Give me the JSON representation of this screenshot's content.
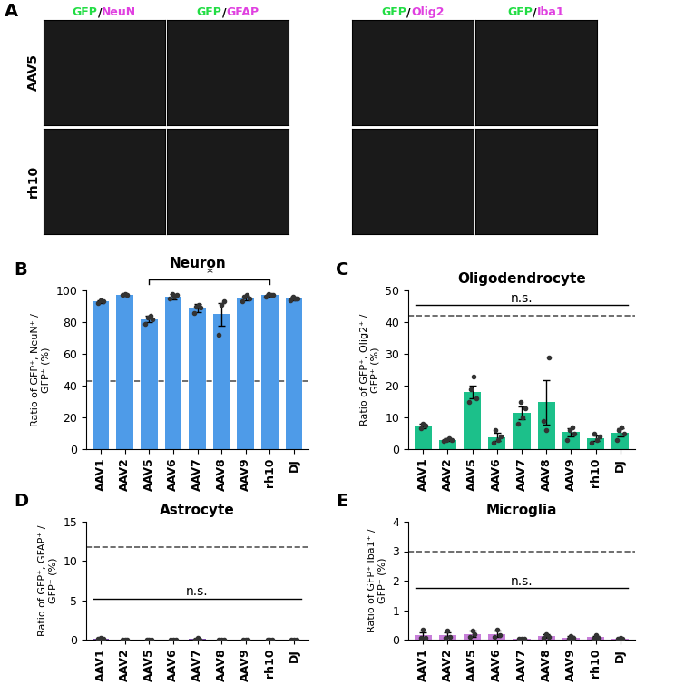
{
  "image_panel": {
    "panel": "A",
    "separator": "/",
    "reporter": "GFP",
    "reporter_color": "#22dd44",
    "stain_color": "#e040e0",
    "stains": [
      "NeuN",
      "GFAP",
      "Olig2",
      "Iba1"
    ],
    "rows": [
      "AAV5",
      "rh10"
    ]
  },
  "chart_data": [
    {
      "type": "bar",
      "panel": "B",
      "title": "Neuron",
      "y_label": "Ratio of GFP⁺, NeuN⁺ /\nGFP⁺ (%)",
      "categories": [
        "AAV1",
        "AAV2",
        "AAV5",
        "AAV6",
        "AAV7",
        "AAV8",
        "AAV9",
        "rh10",
        "DJ"
      ],
      "values": [
        93,
        97,
        82,
        96,
        89,
        85,
        95,
        97,
        95
      ],
      "errors": [
        1,
        0.5,
        2,
        1.5,
        2.5,
        7,
        1.5,
        0.8,
        1
      ],
      "points": [
        [
          92,
          94,
          93
        ],
        [
          97,
          98,
          97
        ],
        [
          79,
          83,
          84,
          82
        ],
        [
          95,
          98,
          96,
          97
        ],
        [
          86,
          90,
          91,
          89
        ],
        [
          72,
          91,
          93
        ],
        [
          93,
          96,
          97,
          95
        ],
        [
          96,
          98,
          97,
          97
        ],
        [
          94,
          96,
          95,
          95
        ]
      ],
      "color": "#4e9be8",
      "ylim": [
        0,
        100
      ],
      "yticks": [
        0,
        20,
        40,
        60,
        80,
        100
      ],
      "reference_line": 43,
      "annotations": [
        {
          "text": "*",
          "from": "AAV5",
          "to": "rh10"
        }
      ]
    },
    {
      "type": "bar",
      "panel": "C",
      "title": "Oligodendrocyte",
      "y_label": "Ratio of GFP⁺, Olig2⁺ /\nGFP⁺ (%)",
      "categories": [
        "AAV1",
        "AAV2",
        "AAV5",
        "AAV6",
        "AAV7",
        "AAV8",
        "AAV9",
        "rh10",
        "DJ"
      ],
      "values": [
        7.3,
        3,
        18,
        3.8,
        11.5,
        14.8,
        5.3,
        3.5,
        5.2
      ],
      "errors": [
        0.8,
        0.4,
        2,
        1.3,
        2,
        7,
        1.3,
        0.8,
        1.3
      ],
      "points": [
        [
          6.5,
          8,
          7.5
        ],
        [
          2.5,
          3,
          3.5,
          3
        ],
        [
          15,
          19,
          23,
          16
        ],
        [
          2,
          6,
          3,
          4
        ],
        [
          8,
          15,
          10,
          13
        ],
        [
          9,
          6,
          29
        ],
        [
          3,
          6,
          7,
          5
        ],
        [
          2,
          5,
          3,
          4
        ],
        [
          3,
          6,
          7,
          5
        ]
      ],
      "color": "#1cc08a",
      "ylim": [
        0,
        50
      ],
      "yticks": [
        0,
        10,
        20,
        30,
        40,
        50
      ],
      "reference_line": 42,
      "annotations": [
        {
          "text": "n.s.",
          "from": "AAV1",
          "to": "DJ"
        }
      ]
    },
    {
      "type": "bar",
      "panel": "D",
      "title": "Astrocyte",
      "y_label": "Ratio of GFP⁺, GFAP⁺ /\nGFP⁺ (%)",
      "categories": [
        "AAV1",
        "AAV2",
        "AAV5",
        "AAV6",
        "AAV7",
        "AAV8",
        "AAV9",
        "rh10",
        "DJ"
      ],
      "values": [
        0.15,
        0.05,
        0.05,
        0.05,
        0.1,
        0.05,
        0.05,
        0.05,
        0.05
      ],
      "errors": [
        0.08,
        0.03,
        0.03,
        0.03,
        0.06,
        0.03,
        0.03,
        0.03,
        0.03
      ],
      "points": [
        [
          0.1,
          0.25,
          0.1
        ],
        [
          0.05,
          0.05,
          0.05
        ],
        [
          0.05,
          0.05,
          0.05
        ],
        [
          0.05,
          0.05,
          0.05
        ],
        [
          0.05,
          0.2,
          0.05
        ],
        [
          0.05,
          0.05,
          0.05
        ],
        [
          0.05,
          0.05,
          0.05
        ],
        [
          0.05,
          0.05,
          0.05
        ],
        [
          0.05,
          0.05,
          0.05
        ]
      ],
      "color": "#7b4fa8",
      "ylim": [
        0,
        15
      ],
      "yticks": [
        0,
        5,
        10,
        15
      ],
      "reference_line": 11.8,
      "annotations": [
        {
          "text": "n.s.",
          "from": "AAV1",
          "to": "DJ"
        }
      ]
    },
    {
      "type": "bar",
      "panel": "E",
      "title": "Microglia",
      "y_label": "Ratio of GFP⁺ Iba1⁺ /\nGFP⁺ (%)",
      "categories": [
        "AAV1",
        "AAV2",
        "AAV5",
        "AAV6",
        "AAV7",
        "AAV8",
        "AAV9",
        "rh10",
        "DJ"
      ],
      "values": [
        0.15,
        0.15,
        0.2,
        0.2,
        0.02,
        0.12,
        0.07,
        0.08,
        0.03
      ],
      "errors": [
        0.1,
        0.1,
        0.1,
        0.1,
        0.02,
        0.07,
        0.05,
        0.05,
        0.03
      ],
      "points": [
        [
          0.05,
          0.35,
          0.05
        ],
        [
          0.05,
          0.3,
          0.1
        ],
        [
          0.1,
          0.3,
          0.2
        ],
        [
          0.1,
          0.35,
          0.15
        ],
        [
          0.02,
          0.02,
          0.02
        ],
        [
          0.05,
          0.2,
          0.1
        ],
        [
          0.02,
          0.12,
          0.07
        ],
        [
          0.02,
          0.15,
          0.07
        ],
        [
          0.02,
          0.05,
          0.02
        ]
      ],
      "color": "#c77fd9",
      "ylim": [
        0,
        4
      ],
      "yticks": [
        0,
        1,
        2,
        3,
        4
      ],
      "reference_line": 3,
      "annotations": [
        {
          "text": "n.s.",
          "from": "AAV1",
          "to": "DJ"
        }
      ]
    }
  ]
}
